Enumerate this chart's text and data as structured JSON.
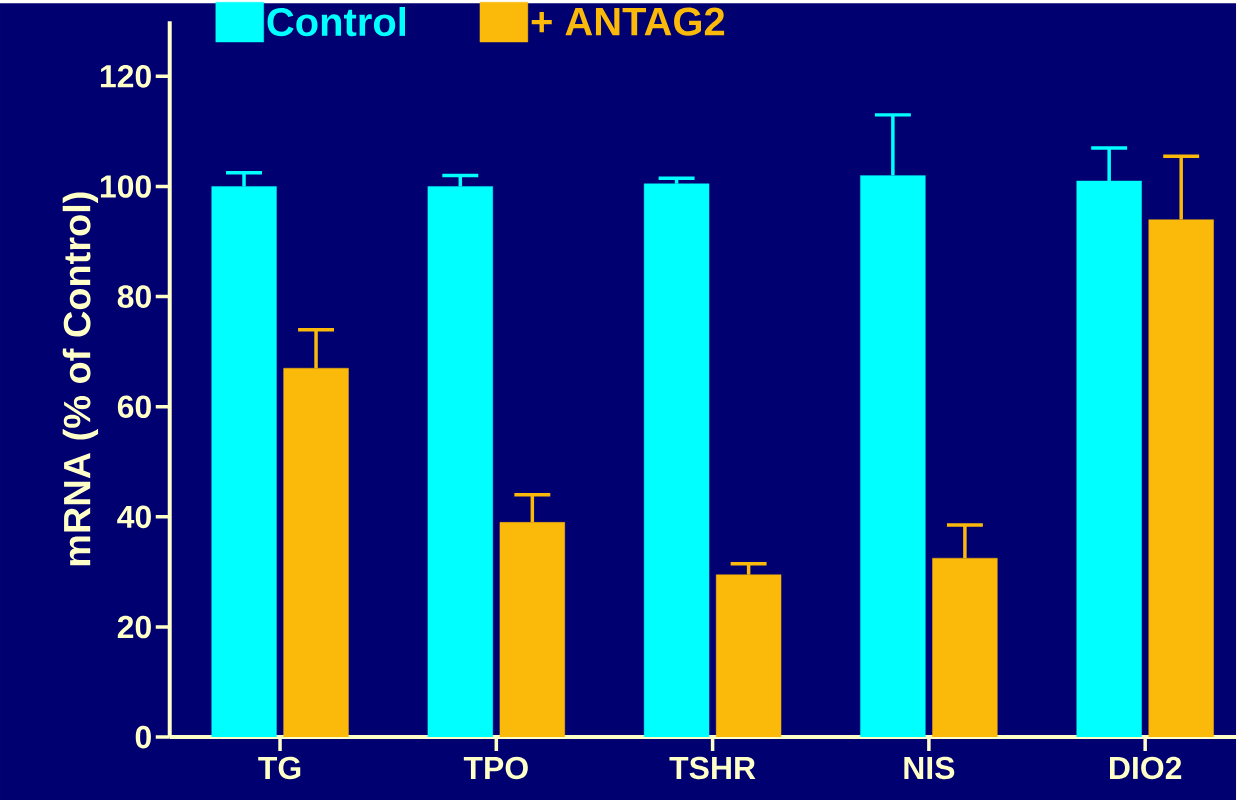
{
  "chart_data": {
    "type": "bar",
    "ylabel": "mRNA (% of Control)",
    "categories": [
      "TG",
      "TPO",
      "TSHR",
      "NIS",
      "DIO2"
    ],
    "series": [
      {
        "name": "Control",
        "color": "#00ffff",
        "values": [
          100,
          100,
          100.5,
          102,
          101
        ],
        "errors": [
          [
            100,
            102.5
          ],
          [
            100,
            102
          ],
          [
            100.5,
            101.5
          ],
          [
            102,
            113
          ],
          [
            101,
            107
          ]
        ]
      },
      {
        "name": "+ ANTAG2",
        "color": "#fbb909",
        "values": [
          67,
          39,
          29.5,
          32.5,
          94
        ],
        "errors": [
          [
            67,
            74
          ],
          [
            39,
            44
          ],
          [
            29.5,
            31.5
          ],
          [
            32.5,
            38.5
          ],
          [
            94,
            105.5
          ]
        ]
      }
    ],
    "ylim": [
      0,
      130
    ],
    "yticks": [
      0,
      20,
      40,
      60,
      80,
      100,
      120
    ],
    "legend": "top"
  }
}
